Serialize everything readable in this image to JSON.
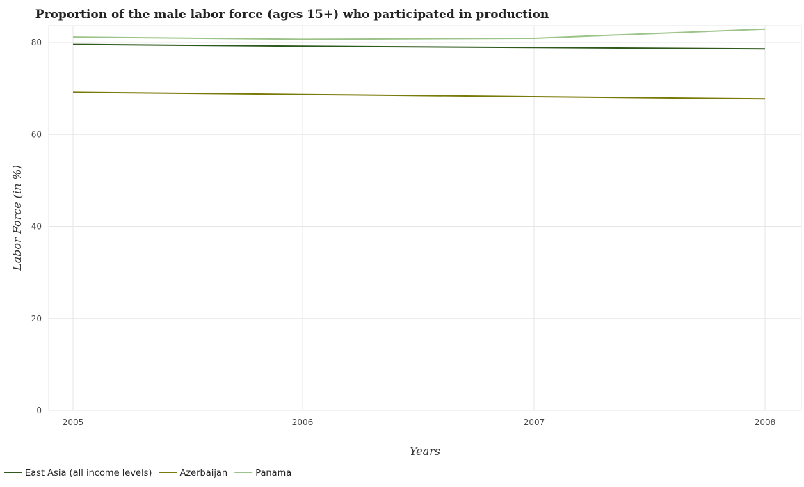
{
  "chart_data": {
    "type": "line",
    "title": "Proportion of the male labor force (ages 15+) who participated in production",
    "xlabel": "Years",
    "ylabel": "Labor Force (in %)",
    "categories": [
      "2005",
      "2006",
      "2007",
      "2008"
    ],
    "ylim": [
      0,
      85
    ],
    "yticks": [
      0,
      20,
      40,
      60,
      80
    ],
    "grid": true,
    "legend_position": "bottom-left",
    "series": [
      {
        "name": "East Asia (all income levels)",
        "color": "#2f5a1e",
        "values": [
          79.6,
          79.2,
          78.9,
          78.6
        ]
      },
      {
        "name": "Azerbaijan",
        "color": "#7a7a0a",
        "values": [
          69.2,
          68.7,
          68.2,
          67.7
        ]
      },
      {
        "name": "Panama",
        "color": "#9cc48a",
        "values": [
          81.2,
          80.7,
          80.9,
          82.9
        ]
      }
    ]
  }
}
